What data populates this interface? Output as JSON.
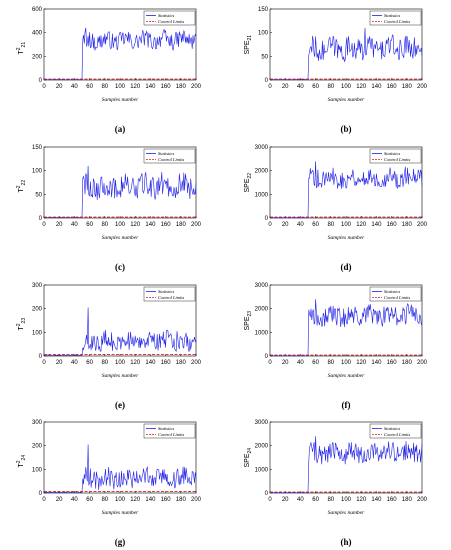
{
  "colors": {
    "statistics": "#1f1fe6",
    "control_limits": "#d62020",
    "axis": "#000000"
  },
  "chart_data": [
    {
      "type": "line",
      "id": "a",
      "caption": "(a)",
      "ylabel_main": "T",
      "ylabel_sup": "2",
      "ylabel_sub": "21",
      "xlabel": "Samples number",
      "xlim": [
        0,
        200
      ],
      "ylim": [
        0,
        600
      ],
      "xticks": [
        0,
        20,
        40,
        60,
        80,
        100,
        120,
        140,
        160,
        180,
        200
      ],
      "yticks": [
        0,
        200,
        400,
        600
      ],
      "legend": [
        "Statistics",
        "Control Limits"
      ],
      "legend_position": "top-right",
      "fault_onset": 51,
      "series": [
        {
          "name": "Statistics",
          "pre": 4,
          "mean": 330,
          "amp": 60,
          "peak": [
            55,
            440
          ]
        },
        {
          "name": "Control Limits",
          "value": 8
        }
      ]
    },
    {
      "type": "line",
      "id": "b",
      "caption": "(b)",
      "ylabel_main": "SPE",
      "ylabel_sup": "",
      "ylabel_sub": "21",
      "xlabel": "Samples number",
      "xlim": [
        0,
        200
      ],
      "ylim": [
        0,
        150
      ],
      "xticks": [
        0,
        20,
        40,
        60,
        80,
        100,
        120,
        140,
        160,
        180,
        200
      ],
      "yticks": [
        0,
        50,
        100,
        150
      ],
      "legend": [
        "Statistics",
        "Control Limits"
      ],
      "legend_position": "top-right",
      "fault_onset": 51,
      "series": [
        {
          "name": "Statistics",
          "pre": 1,
          "mean": 65,
          "amp": 20,
          "peak": [
            125,
            110
          ]
        },
        {
          "name": "Control Limits",
          "value": 2
        }
      ]
    },
    {
      "type": "line",
      "id": "c",
      "caption": "(c)",
      "ylabel_main": "T",
      "ylabel_sup": "2",
      "ylabel_sub": "22",
      "xlabel": "Samples number",
      "xlim": [
        0,
        200
      ],
      "ylim": [
        0,
        150
      ],
      "xticks": [
        0,
        20,
        40,
        60,
        80,
        100,
        120,
        140,
        160,
        180,
        200
      ],
      "yticks": [
        0,
        50,
        100,
        150
      ],
      "legend": [
        "Statistics",
        "Control Limits"
      ],
      "legend_position": "top-right",
      "fault_onset": 51,
      "series": [
        {
          "name": "Statistics",
          "pre": 1,
          "mean": 65,
          "amp": 20,
          "peak": [
            58,
            110
          ]
        },
        {
          "name": "Control Limits",
          "value": 2
        }
      ]
    },
    {
      "type": "line",
      "id": "d",
      "caption": "(d)",
      "ylabel_main": "SPE",
      "ylabel_sup": "",
      "ylabel_sub": "22",
      "xlabel": "Samples number",
      "xlim": [
        0,
        200
      ],
      "ylim": [
        0,
        3000
      ],
      "xticks": [
        0,
        20,
        40,
        60,
        80,
        100,
        120,
        140,
        160,
        180,
        200
      ],
      "yticks": [
        0,
        1000,
        2000,
        3000
      ],
      "legend": [
        "Statistics",
        "Control Limits"
      ],
      "legend_position": "top-right",
      "fault_onset": 51,
      "series": [
        {
          "name": "Statistics",
          "pre": 10,
          "mean": 1650,
          "amp": 350,
          "peak": [
            60,
            2400
          ]
        },
        {
          "name": "Control Limits",
          "value": 40
        }
      ]
    },
    {
      "type": "line",
      "id": "e",
      "caption": "(e)",
      "ylabel_main": "T",
      "ylabel_sup": "2",
      "ylabel_sub": "23",
      "xlabel": "Samples number",
      "xlim": [
        0,
        200
      ],
      "ylim": [
        0,
        300
      ],
      "xticks": [
        0,
        20,
        40,
        60,
        80,
        100,
        120,
        140,
        160,
        180,
        200
      ],
      "yticks": [
        0,
        100,
        200,
        300
      ],
      "legend": [
        "Statistics",
        "Control Limits"
      ],
      "legend_position": "top-right",
      "fault_onset": 51,
      "series": [
        {
          "name": "Statistics",
          "pre": 3,
          "mean": 60,
          "amp": 35,
          "peak": [
            58,
            205
          ]
        },
        {
          "name": "Control Limits",
          "value": 6
        }
      ]
    },
    {
      "type": "line",
      "id": "f",
      "caption": "(f)",
      "ylabel_main": "SPE",
      "ylabel_sup": "",
      "ylabel_sub": "23",
      "xlabel": "Samples number",
      "xlim": [
        0,
        200
      ],
      "ylim": [
        0,
        3000
      ],
      "xticks": [
        0,
        20,
        40,
        60,
        80,
        100,
        120,
        140,
        160,
        180,
        200
      ],
      "yticks": [
        0,
        1000,
        2000,
        3000
      ],
      "legend": [
        "Statistics",
        "Control Limits"
      ],
      "legend_position": "top-right",
      "fault_onset": 51,
      "series": [
        {
          "name": "Statistics",
          "pre": 10,
          "mean": 1650,
          "amp": 350,
          "peak": [
            60,
            2400
          ]
        },
        {
          "name": "Control Limits",
          "value": 40
        }
      ]
    },
    {
      "type": "line",
      "id": "g",
      "caption": "(g)",
      "ylabel_main": "T",
      "ylabel_sup": "2",
      "ylabel_sub": "24",
      "xlabel": "Samples number",
      "xlim": [
        0,
        200
      ],
      "ylim": [
        0,
        300
      ],
      "xticks": [
        0,
        20,
        40,
        60,
        80,
        100,
        120,
        140,
        160,
        180,
        200
      ],
      "yticks": [
        0,
        100,
        200,
        300
      ],
      "legend": [
        "Statistics",
        "Control Limits"
      ],
      "legend_position": "top-right",
      "fault_onset": 51,
      "series": [
        {
          "name": "Statistics",
          "pre": 3,
          "mean": 60,
          "amp": 35,
          "peak": [
            58,
            205
          ]
        },
        {
          "name": "Control Limits",
          "value": 6
        }
      ]
    },
    {
      "type": "line",
      "id": "h",
      "caption": "(h)",
      "ylabel_main": "SPE",
      "ylabel_sup": "",
      "ylabel_sub": "24",
      "xlabel": "Samples number",
      "xlim": [
        0,
        200
      ],
      "ylim": [
        0,
        3000
      ],
      "xticks": [
        0,
        20,
        40,
        60,
        80,
        100,
        120,
        140,
        160,
        180,
        200
      ],
      "yticks": [
        0,
        1000,
        2000,
        3000
      ],
      "legend": [
        "Statistics",
        "Control Limits"
      ],
      "legend_position": "top-right",
      "fault_onset": 51,
      "series": [
        {
          "name": "Statistics",
          "pre": 10,
          "mean": 1650,
          "amp": 350,
          "peak": [
            60,
            2400
          ]
        },
        {
          "name": "Control Limits",
          "value": 40
        }
      ]
    }
  ]
}
